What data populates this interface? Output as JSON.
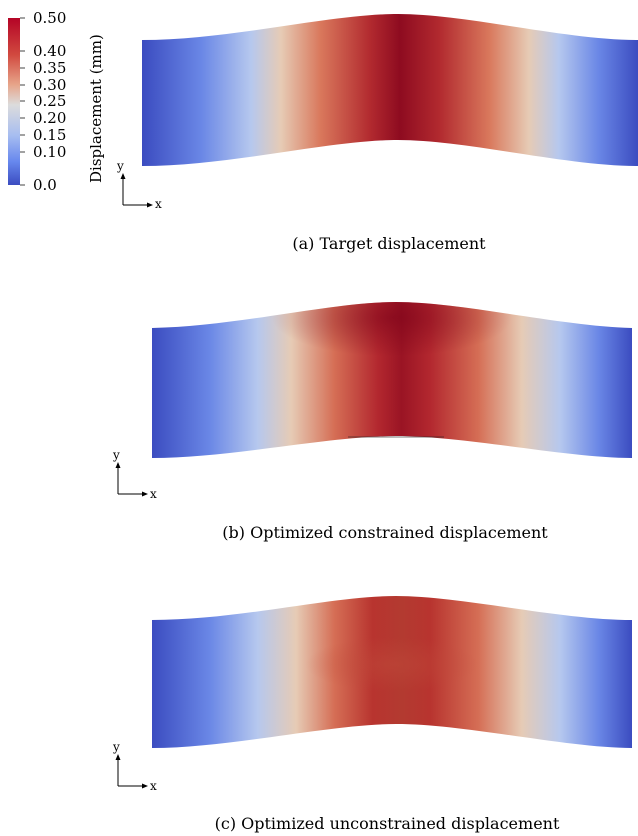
{
  "colorbar": {
    "title": "Displacement (mm)",
    "ticks": [
      "0.50",
      "0.40",
      "0.35",
      "0.30",
      "0.25",
      "0.20",
      "0.15",
      "0.10",
      "0.0"
    ],
    "colors": {
      "low": "#3b4cc0",
      "mid": "#dddddd",
      "high": "#b40426",
      "peak": "#8b0a1e"
    }
  },
  "axes": {
    "y": "y",
    "x": "x"
  },
  "panels": [
    {
      "caption": "(a) Target displacement"
    },
    {
      "caption": "(b) Optimized constrained displacement"
    },
    {
      "caption": "(c) Optimized unconstrained displacement"
    }
  ]
}
